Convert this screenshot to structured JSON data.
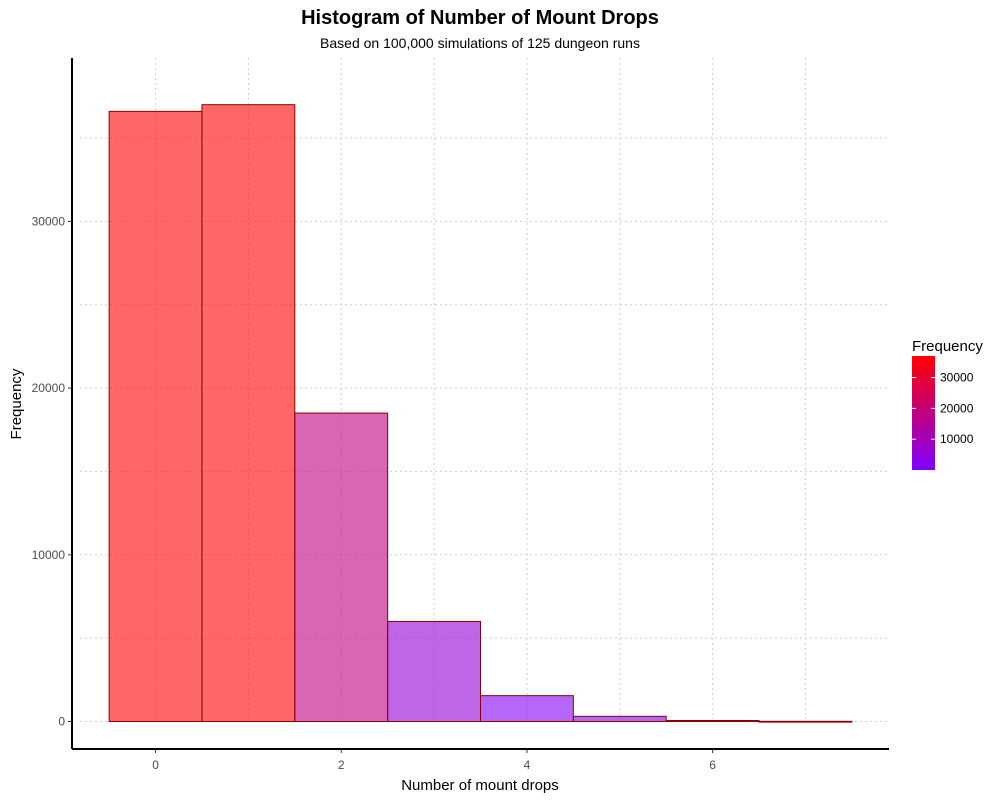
{
  "chart_data": {
    "type": "bar",
    "title": "Histogram of Number of Mount Drops",
    "subtitle": "Based on 100,000 simulations of 125 dungeon runs",
    "xlabel": "Number of mount drops",
    "ylabel": "Frequency",
    "x": [
      0,
      1,
      2,
      3,
      4,
      5,
      6,
      7
    ],
    "values": [
      36600,
      37000,
      18500,
      6000,
      1550,
      310,
      60,
      10
    ],
    "xlim": [
      -0.9,
      7.9
    ],
    "ylim": [
      -1650,
      39800
    ],
    "x_ticks": [
      0,
      2,
      4,
      6
    ],
    "x_tick_labels": [
      "0",
      "2",
      "4",
      "6"
    ],
    "y_ticks": [
      0,
      10000,
      20000,
      30000
    ],
    "y_tick_labels": [
      "0",
      "10000",
      "20000",
      "30000"
    ],
    "grid": true,
    "bar_stroke_color": "#8b0000",
    "fill_opacity": 0.6,
    "legend": {
      "title": "Frequency",
      "position": "right",
      "labels": [
        "30000",
        "20000",
        "10000"
      ],
      "values": [
        30000,
        20000,
        10000
      ],
      "min": 0,
      "max": 37000,
      "low_color": "#8000ff",
      "high_color": "#ff0000"
    }
  }
}
